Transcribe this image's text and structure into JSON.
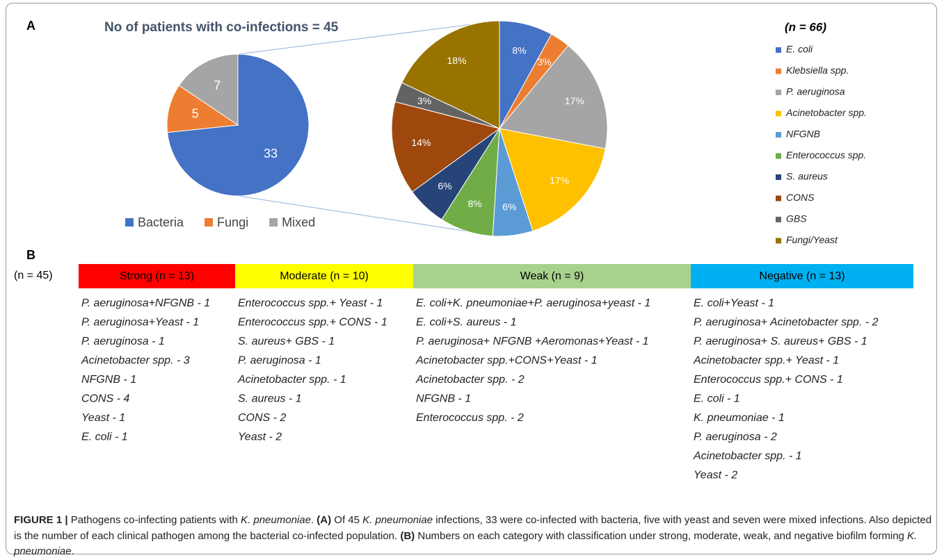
{
  "chart_data": [
    {
      "type": "pie",
      "title": "No of patients with co-infections = 45",
      "panel": "A",
      "categories": [
        "Bacteria",
        "Fungi",
        "Mixed"
      ],
      "values": [
        33,
        5,
        7
      ],
      "colors": [
        "#4472c4",
        "#ed7d31",
        "#a5a5a5"
      ],
      "legend": "bottom"
    },
    {
      "type": "pie",
      "legend_title": "(n =  66)",
      "categories": [
        "E. coli",
        "Klebsiella spp.",
        "P. aeruginosa",
        "Acinetobacter spp.",
        "NFGNB",
        "Enterococcus spp.",
        "S. aureus",
        "CONS",
        "GBS",
        "Fungi/Yeast"
      ],
      "values": [
        8,
        3,
        17,
        17,
        6,
        8,
        6,
        14,
        3,
        18
      ],
      "value_labels": [
        "8%",
        "3%",
        "17%",
        "17%",
        "6%",
        "8%",
        "6%",
        "14%",
        "3%",
        "18%"
      ],
      "colors": [
        "#4472c4",
        "#ed7d31",
        "#a5a5a5",
        "#ffc000",
        "#5b9bd5",
        "#70ad47",
        "#264478",
        "#9e480e",
        "#636363",
        "#997300"
      ],
      "legend": "right"
    }
  ],
  "panel_b": {
    "panel": "B",
    "n_label": "(n = 45)",
    "columns": [
      {
        "header": "Strong (n = 13)",
        "color": "#ff0000",
        "items": [
          "P. aeruginosa+NFGNB - 1",
          "P. aeruginosa+Yeast - 1",
          "P. aeruginosa - 1",
          "Acinetobacter spp. - 3",
          "NFGNB - 1",
          "CONS - 4",
          "Yeast - 1",
          "E. coli - 1"
        ]
      },
      {
        "header": "Moderate (n = 10)",
        "color": "#ffff00",
        "items": [
          "Enterococcus spp.+ Yeast - 1",
          "Enterococcus spp.+ CONS - 1",
          "S. aureus+ GBS - 1",
          "P. aeruginosa - 1",
          "Acinetobacter spp. - 1",
          "S. aureus - 1",
          "CONS - 2",
          "Yeast - 2"
        ]
      },
      {
        "header": "Weak (n = 9)",
        "color": "#a9d18e",
        "items": [
          "E. coli+K. pneumoniae+P. aeruginosa+yeast - 1",
          "E. coli+S. aureus - 1",
          "P. aeruginosa+ NFGNB +Aeromonas+Yeast - 1",
          "Acinetobacter spp.+CONS+Yeast - 1",
          "Acinetobacter spp. - 2",
          "NFGNB - 1",
          "Enterococcus spp. - 2"
        ]
      },
      {
        "header": "Negative (n = 13)",
        "color": "#00b0f0",
        "items": [
          "E. coli+Yeast - 1",
          "P. aeruginosa+ Acinetobacter spp. - 2",
          "P. aeruginosa+ S. aureus+ GBS - 1",
          "Acinetobacter spp.+ Yeast - 1",
          "Enterococcus spp.+ CONS - 1",
          "E. coli - 1",
          "K. pneumoniae - 1",
          "P. aeruginosa - 2",
          "Acinetobacter spp. - 1",
          "Yeast - 2"
        ]
      }
    ]
  },
  "caption": [
    "FIGURE 1 |",
    " Pathogens co-infecting patients with ",
    "K. pneumoniae",
    ". ",
    "(A)",
    " Of 45 ",
    "K. pneumoniae",
    " infections, 33 were co-infected with bacteria, five with yeast and seven were mixed infections. Also depicted is the number of each clinical pathogen among the bacterial co-infected population. ",
    "(B)",
    " Numbers on each category with classification under strong, moderate, weak, and negative biofilm forming ",
    "K. pneumoniae",
    "."
  ]
}
